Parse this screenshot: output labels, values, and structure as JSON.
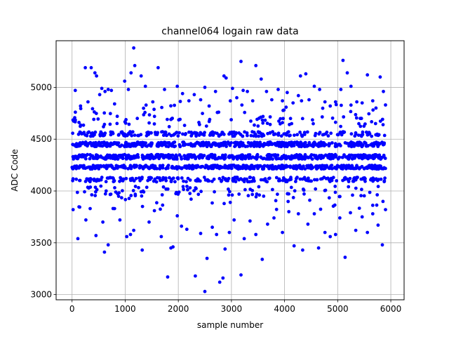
{
  "chart_data": {
    "type": "scatter",
    "title": "channel064 logain raw data",
    "xlabel": "sample number",
    "ylabel": "ADC Code",
    "xlim": [
      -300,
      6250
    ],
    "ylim": [
      2950,
      5450
    ],
    "xticks": [
      0,
      1000,
      2000,
      3000,
      4000,
      5000,
      6000
    ],
    "yticks": [
      3000,
      3500,
      4000,
      4500,
      5000
    ],
    "grid": true,
    "marker_color": "#0000ff",
    "n_samples": 5900,
    "points": [
      [
        60,
        4970
      ],
      [
        160,
        4820
      ],
      [
        250,
        5190
      ],
      [
        300,
        4860
      ],
      [
        360,
        5190
      ],
      [
        430,
        5140
      ],
      [
        460,
        5110
      ],
      [
        520,
        4930
      ],
      [
        560,
        4990
      ],
      [
        620,
        4960
      ],
      [
        680,
        4980
      ],
      [
        740,
        4970
      ],
      [
        800,
        4840
      ],
      [
        850,
        4720
      ],
      [
        990,
        5060
      ],
      [
        1060,
        4980
      ],
      [
        1110,
        5140
      ],
      [
        1160,
        5380
      ],
      [
        1180,
        5210
      ],
      [
        1300,
        5110
      ],
      [
        1380,
        5010
      ],
      [
        1520,
        4860
      ],
      [
        1620,
        5190
      ],
      [
        1740,
        4980
      ],
      [
        1860,
        4690
      ],
      [
        1980,
        5010
      ],
      [
        2080,
        4940
      ],
      [
        2200,
        4870
      ],
      [
        2300,
        4930
      ],
      [
        2420,
        4880
      ],
      [
        2500,
        5000
      ],
      [
        2580,
        4820
      ],
      [
        2700,
        4960
      ],
      [
        2760,
        4760
      ],
      [
        2860,
        5110
      ],
      [
        2900,
        5090
      ],
      [
        3020,
        4990
      ],
      [
        3100,
        4900
      ],
      [
        3180,
        5250
      ],
      [
        3220,
        4970
      ],
      [
        3300,
        4960
      ],
      [
        3400,
        4870
      ],
      [
        3460,
        5210
      ],
      [
        3560,
        5080
      ],
      [
        3660,
        4960
      ],
      [
        3760,
        4880
      ],
      [
        3880,
        4980
      ],
      [
        3960,
        4870
      ],
      [
        4050,
        4950
      ],
      [
        4160,
        4850
      ],
      [
        4260,
        4920
      ],
      [
        4300,
        5110
      ],
      [
        4400,
        5130
      ],
      [
        4460,
        4880
      ],
      [
        4560,
        5010
      ],
      [
        4660,
        4980
      ],
      [
        4760,
        4860
      ],
      [
        4860,
        4820
      ],
      [
        4960,
        4860
      ],
      [
        5060,
        4980
      ],
      [
        5100,
        5260
      ],
      [
        5180,
        5140
      ],
      [
        5250,
        5010
      ],
      [
        5360,
        4860
      ],
      [
        5460,
        4850
      ],
      [
        5560,
        5120
      ],
      [
        5660,
        4870
      ],
      [
        5720,
        4800
      ],
      [
        5800,
        5100
      ],
      [
        5860,
        4960
      ],
      [
        5900,
        4830
      ],
      [
        20,
        3820
      ],
      [
        110,
        3540
      ],
      [
        260,
        3720
      ],
      [
        340,
        3830
      ],
      [
        450,
        3570
      ],
      [
        580,
        3700
      ],
      [
        610,
        3410
      ],
      [
        680,
        3480
      ],
      [
        800,
        3830
      ],
      [
        900,
        3720
      ],
      [
        1030,
        3560
      ],
      [
        1100,
        3580
      ],
      [
        1160,
        3620
      ],
      [
        1320,
        3430
      ],
      [
        1450,
        3700
      ],
      [
        1550,
        3810
      ],
      [
        1680,
        3560
      ],
      [
        1800,
        3170
      ],
      [
        1860,
        3450
      ],
      [
        1900,
        3460
      ],
      [
        1980,
        3760
      ],
      [
        2060,
        3660
      ],
      [
        2160,
        3630
      ],
      [
        2320,
        3180
      ],
      [
        2420,
        3590
      ],
      [
        2500,
        3030
      ],
      [
        2540,
        3350
      ],
      [
        2640,
        3650
      ],
      [
        2720,
        3580
      ],
      [
        2780,
        3120
      ],
      [
        2840,
        3160
      ],
      [
        2880,
        3440
      ],
      [
        2960,
        3600
      ],
      [
        3050,
        3720
      ],
      [
        3180,
        3190
      ],
      [
        3240,
        3540
      ],
      [
        3350,
        3710
      ],
      [
        3460,
        3580
      ],
      [
        3580,
        3340
      ],
      [
        3680,
        3680
      ],
      [
        3800,
        3740
      ],
      [
        3960,
        3600
      ],
      [
        4080,
        3800
      ],
      [
        4180,
        3470
      ],
      [
        4260,
        3780
      ],
      [
        4340,
        3430
      ],
      [
        4440,
        3680
      ],
      [
        4560,
        3780
      ],
      [
        4640,
        3450
      ],
      [
        4760,
        3600
      ],
      [
        4860,
        3560
      ],
      [
        4960,
        3580
      ],
      [
        5040,
        3740
      ],
      [
        5140,
        3360
      ],
      [
        5240,
        3790
      ],
      [
        5340,
        3620
      ],
      [
        5460,
        3750
      ],
      [
        5560,
        3600
      ],
      [
        5660,
        3780
      ],
      [
        5760,
        3670
      ],
      [
        5840,
        3480
      ],
      [
        5900,
        3820
      ]
    ]
  }
}
